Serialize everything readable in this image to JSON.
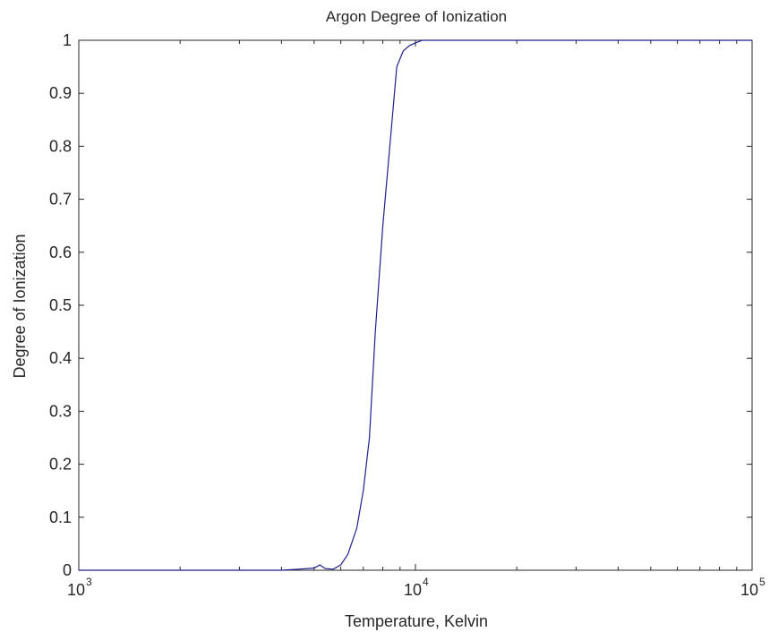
{
  "chart_data": {
    "type": "line",
    "title": "Argon Degree of Ionization",
    "xlabel": "Temperature, Kelvin",
    "ylabel": "Degree of Ionization",
    "xscale": "log",
    "xlim": [
      1000,
      100000
    ],
    "ylim": [
      0,
      1
    ],
    "xticks": [
      {
        "value": 1000,
        "base": "10",
        "exp": "3"
      },
      {
        "value": 10000,
        "base": "10",
        "exp": "4"
      },
      {
        "value": 100000,
        "base": "10",
        "exp": "5"
      }
    ],
    "yticks": [
      "0",
      "0.1",
      "0.2",
      "0.3",
      "0.4",
      "0.5",
      "0.6",
      "0.7",
      "0.8",
      "0.9",
      "1"
    ],
    "grid": false,
    "line_color": "#1f1f8f",
    "series": [
      {
        "x": [
          1000,
          2000,
          3000,
          4000,
          4500,
          5000,
          5200,
          5400,
          5700,
          6000,
          6300,
          6700,
          7000,
          7300,
          7600,
          8000,
          8500,
          8800,
          9200,
          9600,
          10000,
          10500,
          11000,
          12000,
          20000,
          50000,
          100000
        ],
        "y": [
          0,
          0,
          0,
          0,
          0.002,
          0.004,
          0.01,
          0.003,
          0.002,
          0.01,
          0.03,
          0.08,
          0.15,
          0.25,
          0.45,
          0.65,
          0.84,
          0.95,
          0.98,
          0.99,
          0.995,
          1.0,
          1.0,
          1.0,
          1.0,
          1.0,
          1.0
        ]
      }
    ]
  }
}
